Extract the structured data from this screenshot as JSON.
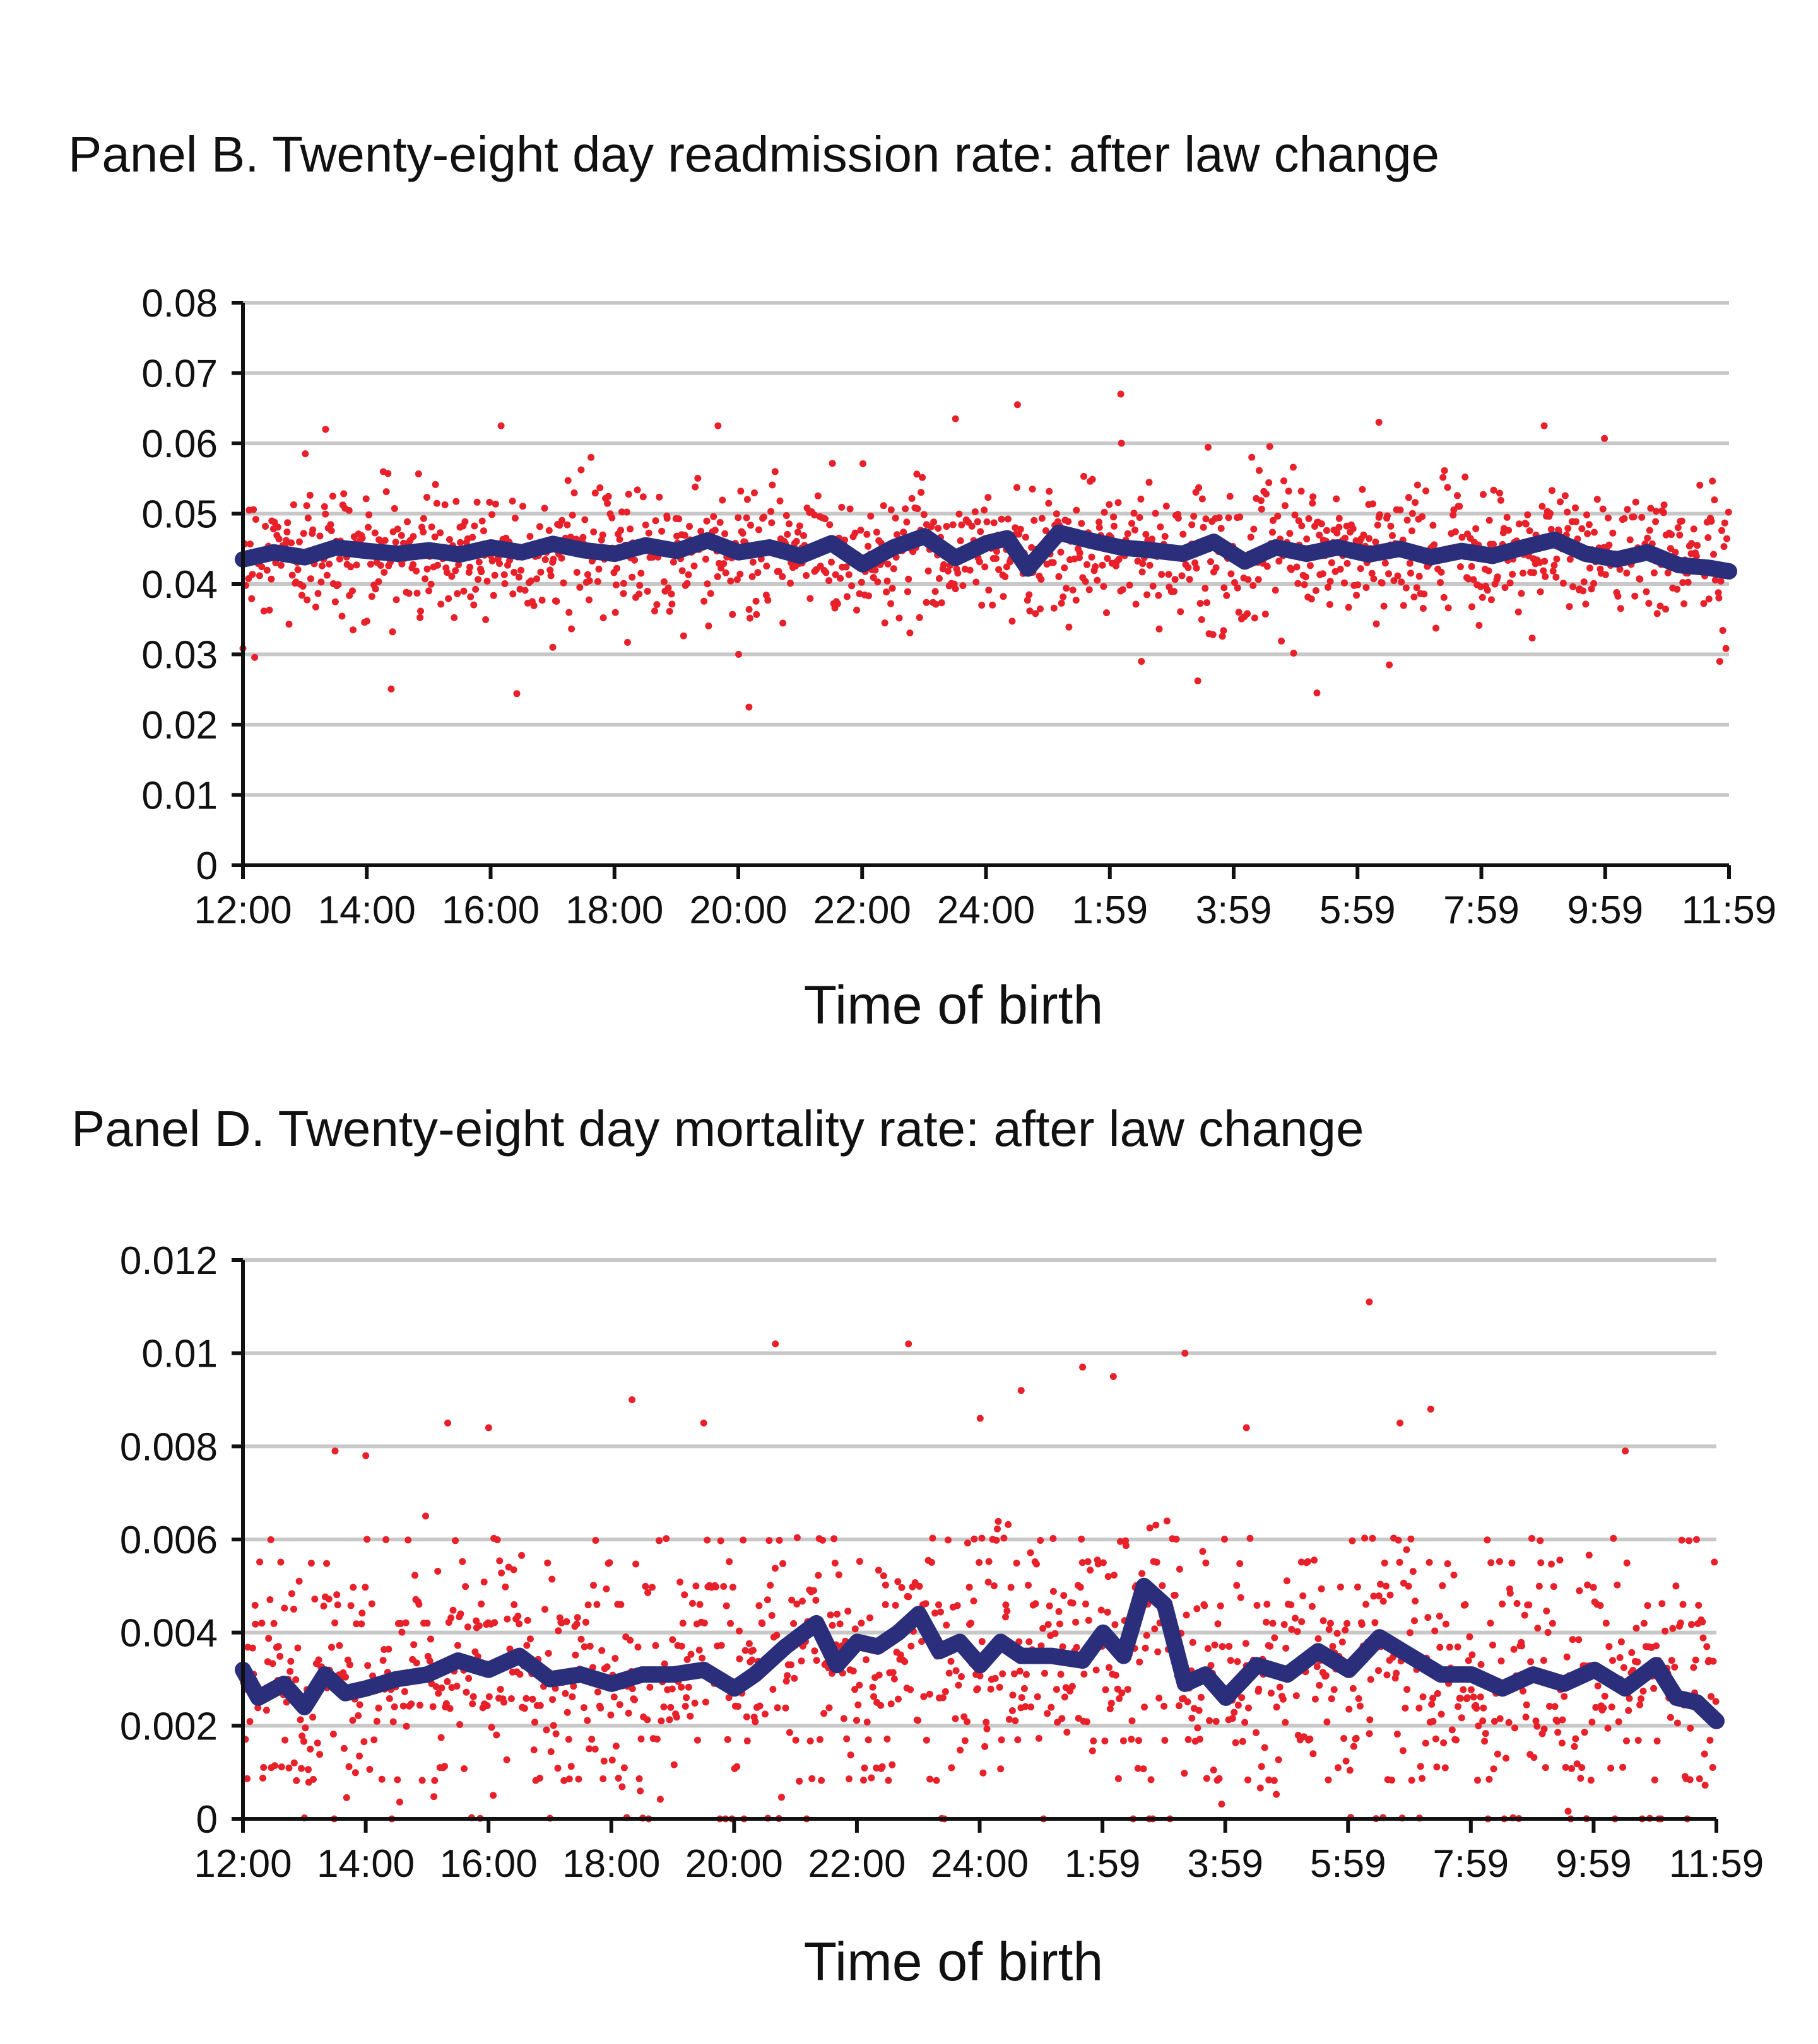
{
  "chart_data": [
    {
      "type": "scatter",
      "title": "Panel B. Twenty-eight day readmission rate: after law change",
      "xlabel": "Time of birth",
      "ylabel": "",
      "x_tick_labels": [
        "12:00",
        "14:00",
        "16:00",
        "18:00",
        "20:00",
        "22:00",
        "24:00",
        "1:59",
        "3:59",
        "5:59",
        "7:59",
        "9:59",
        "11:59"
      ],
      "y_tick_labels": [
        "0",
        "0.01",
        "0.02",
        "0.03",
        "0.04",
        "0.05",
        "0.06",
        "0.07",
        "0.08"
      ],
      "xlim": [
        0,
        1439
      ],
      "ylim": [
        0,
        0.08
      ],
      "grid": true,
      "series": [
        {
          "type": "scatter",
          "color": "#e8202a",
          "approximate": true,
          "center": 0.0445,
          "spread": 0.0048,
          "count": 1300,
          "outliers": [
            {
              "x": 80,
              "y": 0.062
            },
            {
              "x": 250,
              "y": 0.0625
            },
            {
              "x": 300,
              "y": 0.031
            },
            {
              "x": 460,
              "y": 0.0625
            },
            {
              "x": 490,
              "y": 0.0225
            },
            {
              "x": 480,
              "y": 0.03
            },
            {
              "x": 690,
              "y": 0.0635
            },
            {
              "x": 750,
              "y": 0.0655
            },
            {
              "x": 850,
              "y": 0.067
            },
            {
              "x": 870,
              "y": 0.029
            },
            {
              "x": 1040,
              "y": 0.0245
            },
            {
              "x": 1100,
              "y": 0.063
            },
            {
              "x": 1110,
              "y": 0.0285
            },
            {
              "x": 1260,
              "y": 0.0625
            },
            {
              "x": 1430,
              "y": 0.029
            }
          ]
        },
        {
          "type": "line",
          "color": "#2b2f7b",
          "x": [
            0,
            30,
            60,
            90,
            120,
            150,
            180,
            210,
            240,
            270,
            300,
            330,
            360,
            390,
            420,
            450,
            480,
            510,
            540,
            570,
            600,
            630,
            660,
            690,
            720,
            740,
            760,
            790,
            820,
            850,
            880,
            910,
            940,
            970,
            1000,
            1030,
            1060,
            1090,
            1120,
            1150,
            1180,
            1210,
            1240,
            1270,
            1300,
            1330,
            1360,
            1390,
            1420,
            1439
          ],
          "y": [
            0.0435,
            0.0445,
            0.0438,
            0.0452,
            0.0447,
            0.0443,
            0.0448,
            0.0442,
            0.0452,
            0.0445,
            0.0457,
            0.0448,
            0.0443,
            0.0455,
            0.0447,
            0.0462,
            0.0445,
            0.0452,
            0.044,
            0.0458,
            0.0428,
            0.0452,
            0.0468,
            0.0437,
            0.0458,
            0.0465,
            0.0422,
            0.0473,
            0.0462,
            0.0452,
            0.0448,
            0.0443,
            0.046,
            0.0432,
            0.0452,
            0.0443,
            0.0452,
            0.0442,
            0.045,
            0.0438,
            0.0447,
            0.044,
            0.0452,
            0.0463,
            0.0443,
            0.0435,
            0.0445,
            0.0427,
            0.0423,
            0.0418
          ]
        }
      ]
    },
    {
      "type": "scatter",
      "title": "Panel D. Twenty-eight day mortality rate: after law change",
      "xlabel": "Time of birth",
      "ylabel": "",
      "x_tick_labels": [
        "12:00",
        "14:00",
        "16:00",
        "18:00",
        "20:00",
        "22:00",
        "24:00",
        "1:59",
        "3:59",
        "5:59",
        "7:59",
        "9:59",
        "11:59"
      ],
      "y_tick_labels": [
        "0",
        "0.002",
        "0.004",
        "0.006",
        "0.008",
        "0.01",
        "0.012"
      ],
      "xlim": [
        0,
        1439
      ],
      "ylim": [
        0,
        0.012
      ],
      "grid": true,
      "series": [
        {
          "type": "scatter",
          "color": "#e8202a",
          "approximate": true,
          "levels": [
            0,
            0.00085,
            0.0011,
            0.0017,
            0.0021,
            0.0024,
            0.0026,
            0.0028,
            0.0031,
            0.0034,
            0.0037,
            0.0042,
            0.0046,
            0.005,
            0.0055,
            0.006
          ],
          "count": 1300,
          "outliers": [
            {
              "x": 90,
              "y": 0.0079
            },
            {
              "x": 120,
              "y": 0.0078
            },
            {
              "x": 200,
              "y": 0.0085
            },
            {
              "x": 240,
              "y": 0.0084
            },
            {
              "x": 380,
              "y": 0.009
            },
            {
              "x": 450,
              "y": 0.0085
            },
            {
              "x": 520,
              "y": 0.0102
            },
            {
              "x": 650,
              "y": 0.0102
            },
            {
              "x": 720,
              "y": 0.0086
            },
            {
              "x": 760,
              "y": 0.0092
            },
            {
              "x": 820,
              "y": 0.0097
            },
            {
              "x": 850,
              "y": 0.0095
            },
            {
              "x": 920,
              "y": 0.01
            },
            {
              "x": 980,
              "y": 0.0084
            },
            {
              "x": 1100,
              "y": 0.0111
            },
            {
              "x": 1130,
              "y": 0.0085
            },
            {
              "x": 1160,
              "y": 0.0088
            },
            {
              "x": 1350,
              "y": 0.0079
            }
          ]
        },
        {
          "type": "line",
          "color": "#2b2f7b",
          "x": [
            0,
            15,
            40,
            60,
            80,
            100,
            120,
            150,
            180,
            210,
            240,
            270,
            300,
            330,
            360,
            390,
            420,
            450,
            480,
            500,
            530,
            560,
            580,
            600,
            620,
            640,
            660,
            680,
            700,
            720,
            740,
            760,
            790,
            820,
            840,
            860,
            880,
            900,
            920,
            940,
            960,
            990,
            1020,
            1050,
            1080,
            1110,
            1140,
            1170,
            1200,
            1230,
            1260,
            1290,
            1320,
            1350,
            1380,
            1400,
            1420,
            1439
          ],
          "y": [
            0.0032,
            0.0026,
            0.0029,
            0.0024,
            0.0031,
            0.0027,
            0.0028,
            0.003,
            0.0031,
            0.0034,
            0.0032,
            0.0035,
            0.003,
            0.0031,
            0.0029,
            0.0031,
            0.0031,
            0.0032,
            0.0028,
            0.0031,
            0.0037,
            0.0042,
            0.0033,
            0.0038,
            0.0037,
            0.004,
            0.0044,
            0.0036,
            0.0038,
            0.0033,
            0.0038,
            0.0035,
            0.0035,
            0.0034,
            0.004,
            0.0035,
            0.005,
            0.0046,
            0.0029,
            0.0031,
            0.0026,
            0.0033,
            0.0031,
            0.0036,
            0.0032,
            0.0039,
            0.0035,
            0.0031,
            0.0031,
            0.0028,
            0.0031,
            0.0029,
            0.0032,
            0.0028,
            0.0033,
            0.0026,
            0.0025,
            0.0021
          ]
        }
      ]
    }
  ]
}
